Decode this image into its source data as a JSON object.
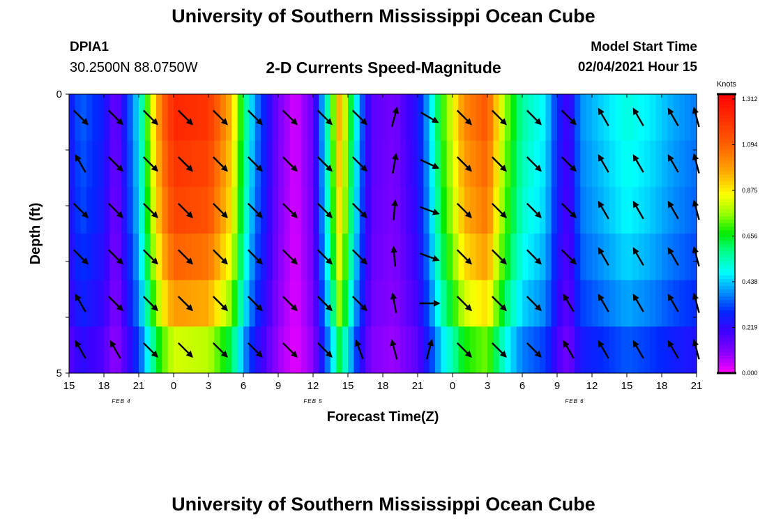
{
  "header": {
    "title": "University of Southern Mississippi Ocean Cube",
    "station": "DPIA1",
    "coords": "30.2500N 88.0750W",
    "subtitle": "2-D Currents Speed-Magnitude",
    "model_start_label": "Model Start Time",
    "model_start_value": "02/04/2021 Hour 15"
  },
  "footer": {
    "title": "University of Southern Mississippi Ocean Cube"
  },
  "chart_data": {
    "type": "heatmap",
    "title": "2-D Currents Speed-Magnitude",
    "xlabel": "Forecast Time(Z)",
    "ylabel": "Depth (ft)",
    "x_tick_labels": [
      "15",
      "18",
      "21",
      "0",
      "3",
      "6",
      "9",
      "12",
      "15",
      "18",
      "21",
      "0",
      "3",
      "6",
      "9",
      "12",
      "15",
      "18",
      "21"
    ],
    "date_labels": [
      {
        "text": "FEB 4",
        "hour": 4.5
      },
      {
        "text": "FEB 5",
        "hour": 21
      },
      {
        "text": "FEB 6",
        "hour": 43.5
      }
    ],
    "ylim": [
      0,
      5
    ],
    "y_tick_labels": [
      "0",
      "5"
    ],
    "depth_rows": [
      0,
      1,
      2,
      3,
      4,
      5
    ],
    "hour_range": [
      0,
      54
    ],
    "colorbar": {
      "unit": "Knots",
      "min": 0.0,
      "max": 1.312,
      "tick_labels": [
        "1.312",
        "1.094",
        "0.875",
        "0.656",
        "0.438",
        "0.219",
        "0.000"
      ]
    },
    "speed_by_hour": [
      {
        "hour": 0,
        "speed": 0.24
      },
      {
        "hour": 1,
        "speed": 0.34
      },
      {
        "hour": 3,
        "speed": 0.26
      },
      {
        "hour": 4,
        "speed": 0.12
      },
      {
        "hour": 6,
        "speed": 0.46
      },
      {
        "hour": 7,
        "speed": 0.78
      },
      {
        "hour": 8,
        "speed": 1.05
      },
      {
        "hour": 9,
        "speed": 1.22
      },
      {
        "hour": 12,
        "speed": 1.18
      },
      {
        "hour": 14,
        "speed": 0.92
      },
      {
        "hour": 15,
        "speed": 0.6
      },
      {
        "hour": 16,
        "speed": 0.38
      },
      {
        "hour": 18,
        "speed": 0.12
      },
      {
        "hour": 19.5,
        "speed": 0.03
      },
      {
        "hour": 21,
        "speed": 0.14
      },
      {
        "hour": 22,
        "speed": 0.46
      },
      {
        "hour": 22.5,
        "speed": 0.62
      },
      {
        "hour": 23.3,
        "speed": 0.95
      },
      {
        "hour": 24,
        "speed": 0.7
      },
      {
        "hour": 25,
        "speed": 0.38
      },
      {
        "hour": 26,
        "speed": 0.16
      },
      {
        "hour": 28,
        "speed": 0.12
      },
      {
        "hour": 30,
        "speed": 0.24
      },
      {
        "hour": 31,
        "speed": 0.42
      },
      {
        "hour": 32,
        "speed": 0.66
      },
      {
        "hour": 33,
        "speed": 0.82
      },
      {
        "hour": 34,
        "speed": 1.0
      },
      {
        "hour": 36,
        "speed": 1.1
      },
      {
        "hour": 37,
        "speed": 0.85
      },
      {
        "hour": 38,
        "speed": 0.68
      },
      {
        "hour": 39,
        "speed": 0.55
      },
      {
        "hour": 41,
        "speed": 0.46
      },
      {
        "hour": 42,
        "speed": 0.28
      },
      {
        "hour": 43,
        "speed": 0.18
      },
      {
        "hour": 44,
        "speed": 0.38
      },
      {
        "hour": 46,
        "speed": 0.44
      },
      {
        "hour": 48,
        "speed": 0.5
      },
      {
        "hour": 50,
        "speed": 0.46
      },
      {
        "hour": 52,
        "speed": 0.4
      },
      {
        "hour": 54,
        "speed": 0.36
      }
    ],
    "depth_factor": [
      1.0,
      0.97,
      0.94,
      0.88,
      0.8,
      0.66
    ],
    "vectors": [
      {
        "hour": 1,
        "dirs": [
          135,
          330,
          135,
          135,
          330,
          330
        ]
      },
      {
        "hour": 4,
        "dirs": [
          135,
          135,
          135,
          135,
          135,
          330
        ]
      },
      {
        "hour": 7,
        "dirs": [
          135,
          135,
          135,
          135,
          135,
          135
        ]
      },
      {
        "hour": 10,
        "dirs": [
          135,
          135,
          135,
          135,
          135,
          135
        ]
      },
      {
        "hour": 13,
        "dirs": [
          135,
          135,
          135,
          135,
          135,
          135
        ]
      },
      {
        "hour": 16,
        "dirs": [
          135,
          135,
          135,
          135,
          135,
          135
        ]
      },
      {
        "hour": 19,
        "dirs": [
          135,
          135,
          135,
          135,
          135,
          135
        ]
      },
      {
        "hour": 22,
        "dirs": [
          135,
          135,
          135,
          135,
          135,
          135
        ]
      },
      {
        "hour": 25,
        "dirs": [
          135,
          135,
          135,
          135,
          135,
          340
        ]
      },
      {
        "hour": 28,
        "dirs": [
          15,
          10,
          5,
          355,
          350,
          345
        ]
      },
      {
        "hour": 31,
        "dirs": [
          120,
          115,
          110,
          110,
          90,
          15
        ]
      },
      {
        "hour": 34,
        "dirs": [
          135,
          135,
          135,
          135,
          135,
          135
        ]
      },
      {
        "hour": 37,
        "dirs": [
          135,
          135,
          135,
          135,
          135,
          135
        ]
      },
      {
        "hour": 40,
        "dirs": [
          135,
          135,
          135,
          135,
          135,
          135
        ]
      },
      {
        "hour": 43,
        "dirs": [
          135,
          135,
          135,
          135,
          330,
          330
        ]
      },
      {
        "hour": 46,
        "dirs": [
          330,
          330,
          330,
          330,
          330,
          330
        ]
      },
      {
        "hour": 49,
        "dirs": [
          330,
          330,
          330,
          330,
          330,
          330
        ]
      },
      {
        "hour": 52,
        "dirs": [
          330,
          330,
          330,
          330,
          330,
          330
        ]
      },
      {
        "hour": 54,
        "dirs": [
          345,
          345,
          345,
          345,
          345,
          345
        ]
      }
    ]
  }
}
